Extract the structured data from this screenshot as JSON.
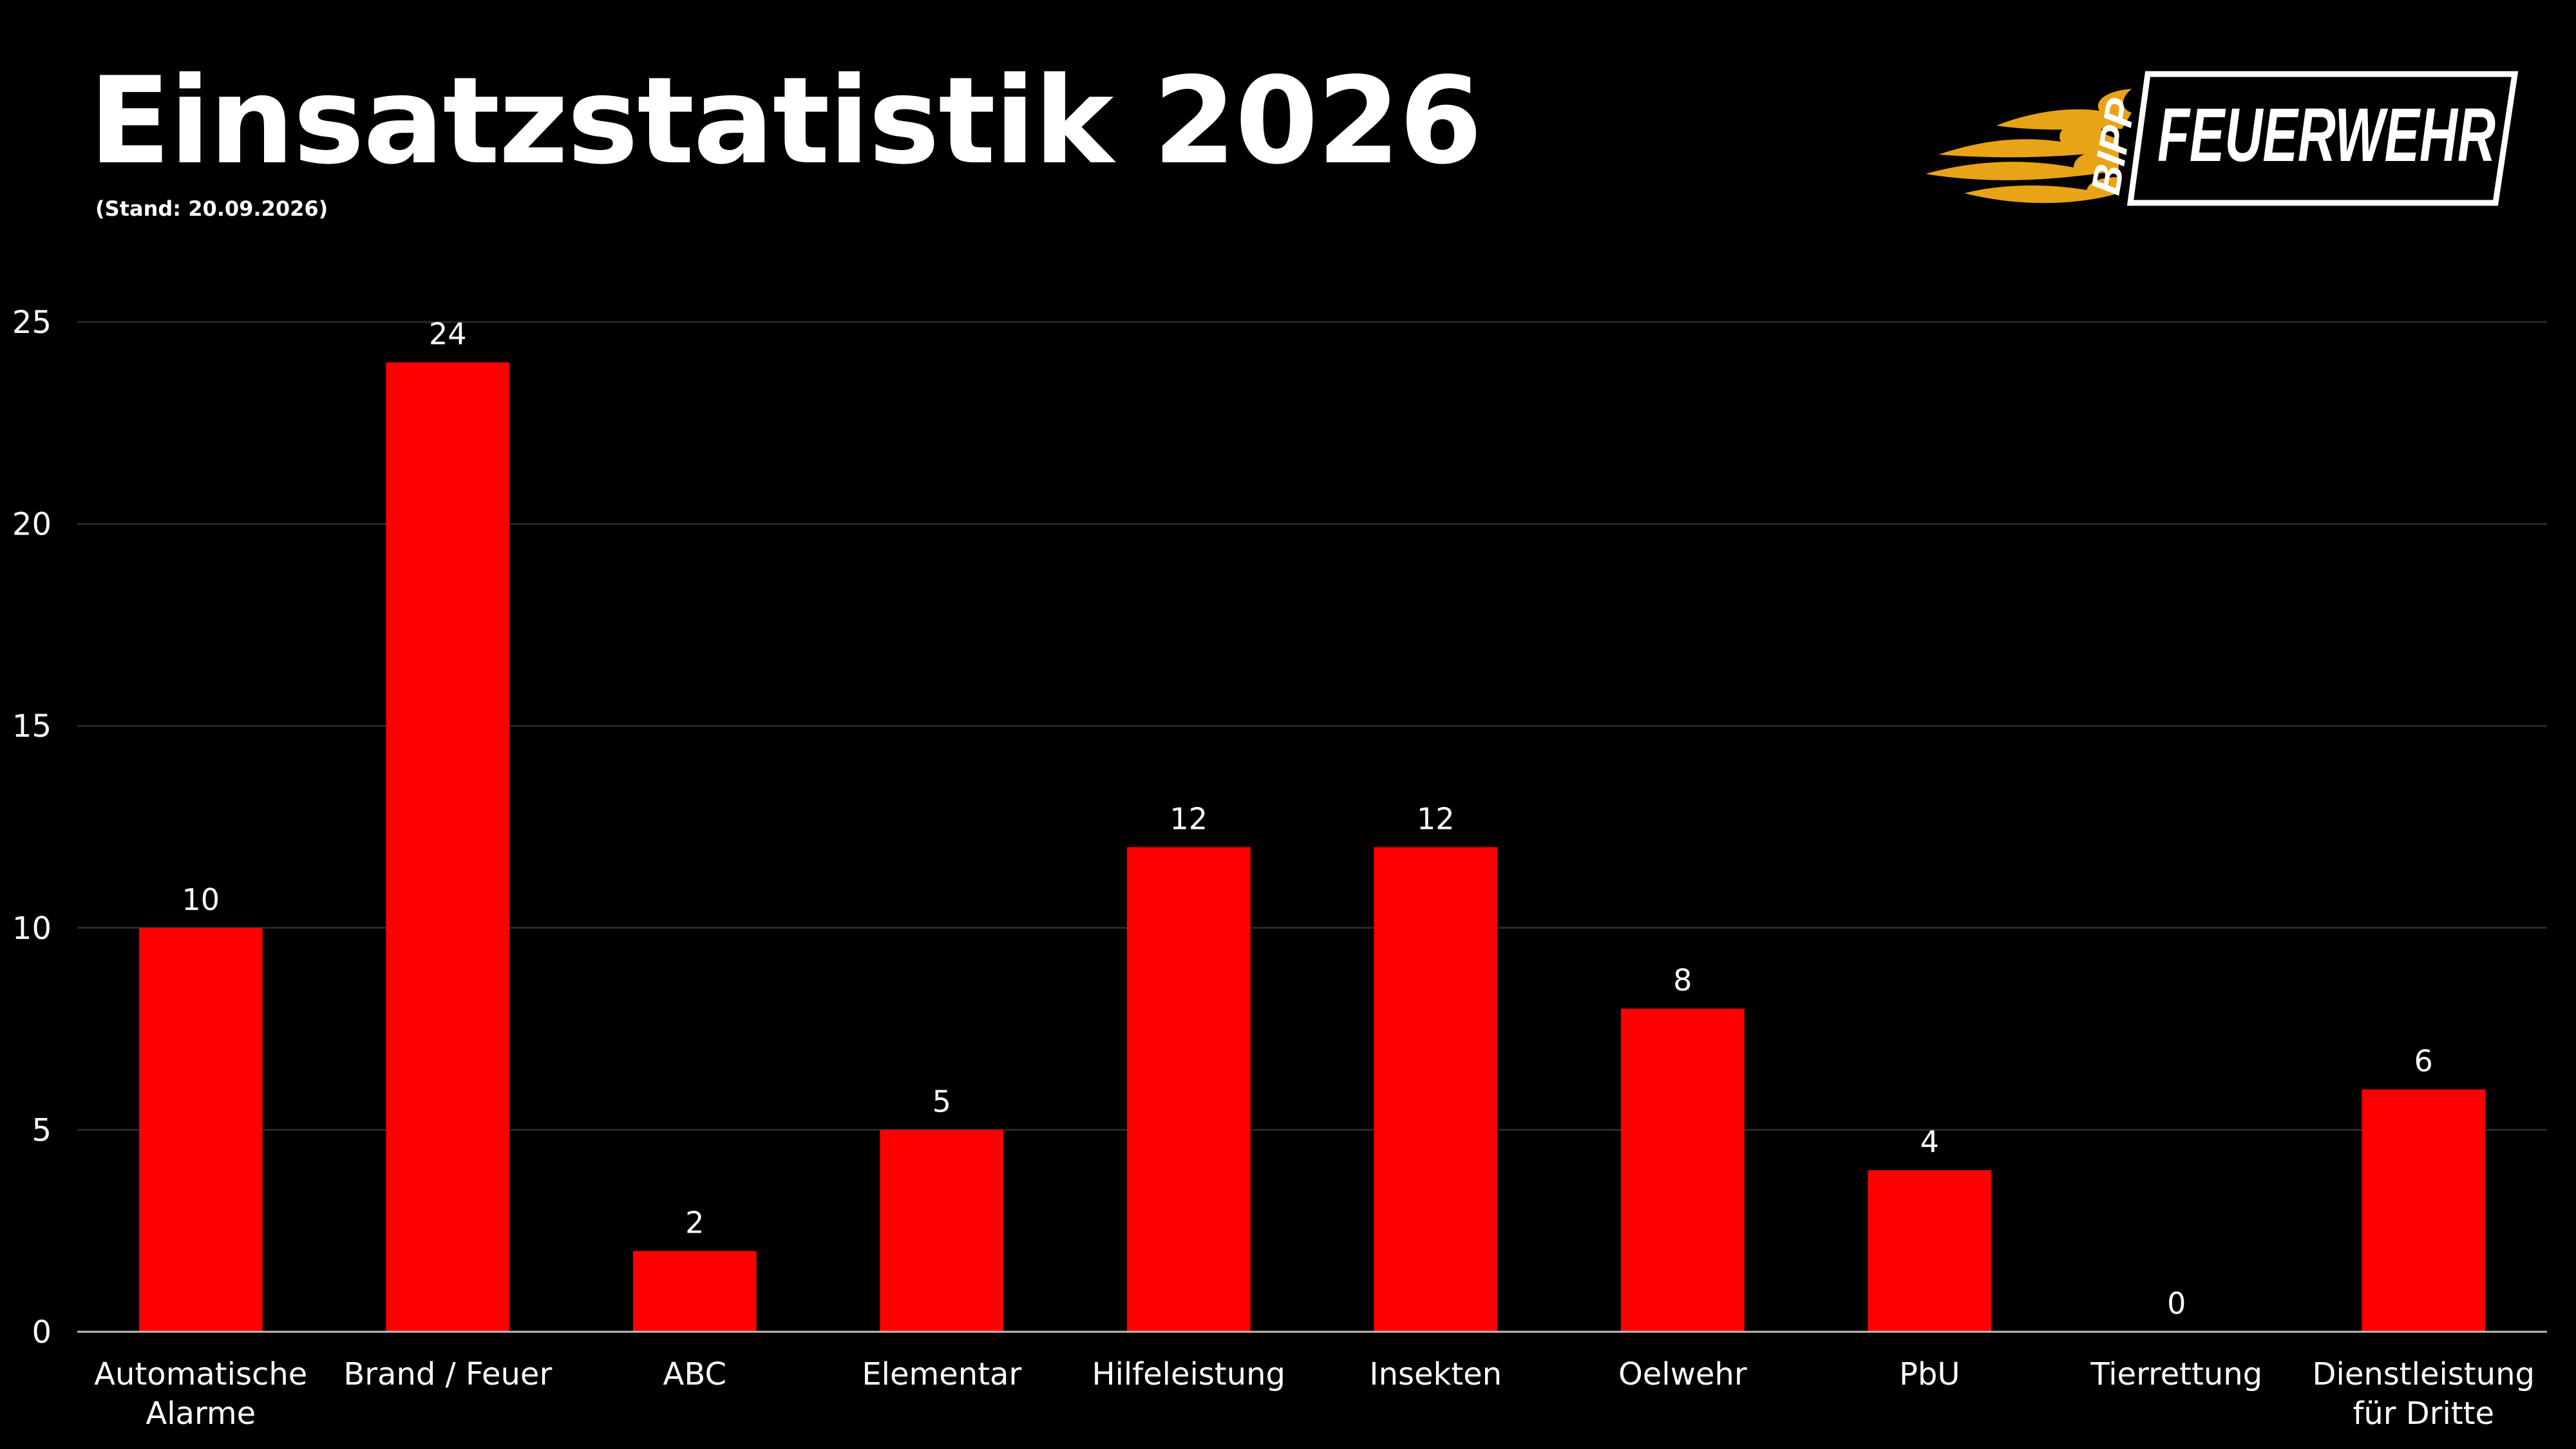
{
  "page": {
    "title": "Einsatzstatistik 2026",
    "subtitle": "(Stand: 20.09.2026)"
  },
  "logo": {
    "name": "bipp-feuerwehr-logo",
    "brand_left": "BIPP",
    "brand_right": "FEUERWEHR",
    "flame_color": "#E8A317"
  },
  "colors": {
    "background": "#000000",
    "bar": "#FF0000",
    "gridline": "#2A2A2A",
    "axis": "#BFBFBF",
    "text": "#FFFFFF"
  },
  "chart_data": {
    "type": "bar",
    "title": "",
    "xlabel": "",
    "ylabel": "",
    "ylim": [
      0,
      25
    ],
    "yticks": [
      0,
      5,
      10,
      15,
      20,
      25
    ],
    "grid": true,
    "data_labels": true,
    "categories": [
      [
        "Automatische",
        "Alarme"
      ],
      [
        "Brand / Feuer"
      ],
      [
        "ABC"
      ],
      [
        "Elementar"
      ],
      [
        "Hilfeleistung"
      ],
      [
        "Insekten"
      ],
      [
        "Oelwehr"
      ],
      [
        "PbU"
      ],
      [
        "Tierrettung"
      ],
      [
        "Dienstleistung",
        "für Dritte"
      ]
    ],
    "values": [
      10,
      24,
      2,
      5,
      12,
      12,
      8,
      4,
      0,
      6
    ]
  }
}
